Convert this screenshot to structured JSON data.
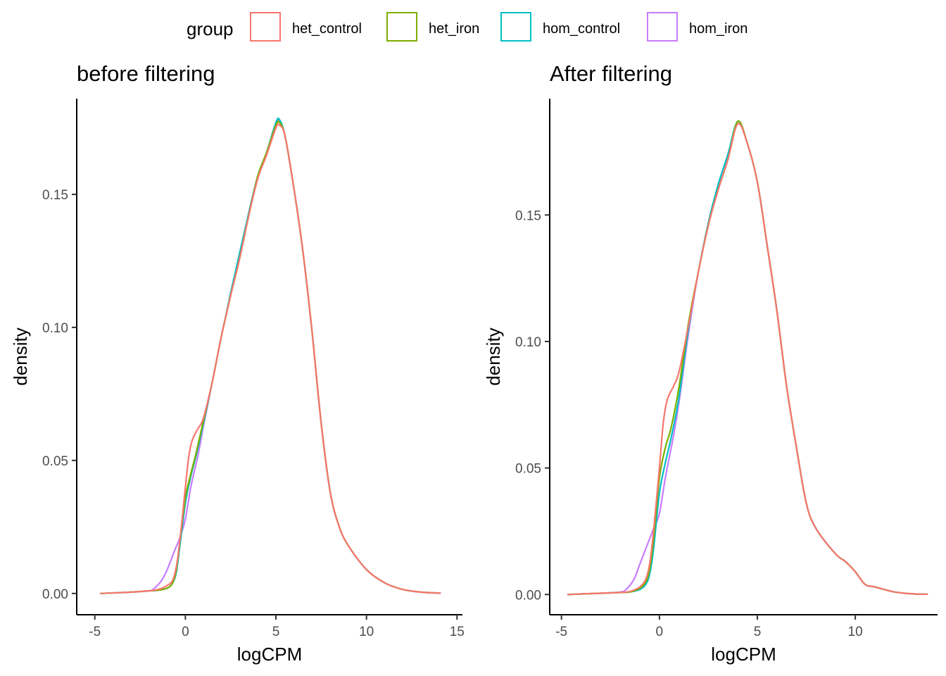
{
  "legend": {
    "title": "group",
    "entries": [
      {
        "name": "het_control",
        "color": "#F8766D"
      },
      {
        "name": "het_iron",
        "color": "#7CAE00"
      },
      {
        "name": "hom_control",
        "color": "#00BFC4"
      },
      {
        "name": "hom_iron",
        "color": "#C77CFF"
      }
    ],
    "position": "top"
  },
  "chart_data": [
    {
      "type": "line",
      "title": "before filtering",
      "xlabel": "logCPM",
      "ylabel": "density",
      "xlim": [
        -6.0,
        15.3
      ],
      "ylim": [
        -0.008,
        0.186
      ],
      "xticks": [
        -5,
        0,
        5,
        10,
        15
      ],
      "xtick_labels": [
        "-5",
        "0",
        "5",
        "10",
        "15"
      ],
      "yticks": [
        0,
        0.05,
        0.1,
        0.15
      ],
      "ytick_labels": [
        "0.00",
        "0.05",
        "0.10",
        "0.15"
      ],
      "grid": false,
      "series": [
        {
          "name": "het_control",
          "x": [
            -4.7,
            -3,
            -2,
            -1.5,
            -1,
            -0.7,
            -0.5,
            -0.3,
            0,
            0.2,
            0.4,
            0.7,
            1,
            1.5,
            2,
            2.5,
            3,
            3.5,
            4,
            4.5,
            5,
            5.2,
            5.5,
            6,
            6.5,
            7,
            7.5,
            8,
            8.5,
            9,
            10,
            11,
            12,
            13,
            14.1
          ],
          "y": [
            0,
            0.0005,
            0.001,
            0.0015,
            0.003,
            0.005,
            0.01,
            0.02,
            0.04,
            0.052,
            0.058,
            0.062,
            0.066,
            0.08,
            0.097,
            0.112,
            0.126,
            0.142,
            0.156,
            0.165,
            0.175,
            0.176,
            0.172,
            0.152,
            0.128,
            0.098,
            0.064,
            0.038,
            0.025,
            0.018,
            0.009,
            0.004,
            0.0015,
            0.0005,
            0.0001
          ]
        },
        {
          "name": "het_iron",
          "x": [
            -4.7,
            -3,
            -2,
            -1.5,
            -1,
            -0.7,
            -0.5,
            -0.3,
            0,
            0.3,
            0.6,
            1,
            1.5,
            2,
            2.5,
            3,
            3.5,
            4,
            4.5,
            5,
            5.2,
            5.5,
            6,
            6.5,
            7,
            7.5,
            8,
            8.5,
            9,
            10,
            11,
            12,
            13,
            14.1
          ],
          "y": [
            0,
            0.0005,
            0.001,
            0.0012,
            0.002,
            0.004,
            0.009,
            0.02,
            0.036,
            0.045,
            0.053,
            0.065,
            0.08,
            0.097,
            0.112,
            0.126,
            0.142,
            0.157,
            0.166,
            0.176,
            0.177,
            0.172,
            0.152,
            0.128,
            0.098,
            0.064,
            0.038,
            0.025,
            0.018,
            0.009,
            0.004,
            0.0015,
            0.0005,
            0.0001
          ]
        },
        {
          "name": "hom_control",
          "x": [
            -4.7,
            -3,
            -2,
            -1.5,
            -1,
            -0.7,
            -0.5,
            -0.3,
            0,
            0.3,
            0.6,
            1,
            1.5,
            2,
            2.5,
            3,
            3.5,
            4,
            4.5,
            5,
            5.2,
            5.5,
            6,
            6.5,
            7,
            7.5,
            8,
            8.5,
            9,
            10,
            11,
            12,
            13,
            14.1
          ],
          "y": [
            0,
            0.0005,
            0.001,
            0.0012,
            0.002,
            0.004,
            0.008,
            0.018,
            0.034,
            0.044,
            0.052,
            0.064,
            0.08,
            0.097,
            0.113,
            0.128,
            0.143,
            0.157,
            0.166,
            0.177,
            0.178,
            0.172,
            0.152,
            0.128,
            0.098,
            0.064,
            0.038,
            0.025,
            0.018,
            0.009,
            0.004,
            0.0015,
            0.0005,
            0.0001
          ]
        },
        {
          "name": "hom_iron",
          "x": [
            -4.7,
            -3,
            -2,
            -1.7,
            -1.3,
            -1,
            -0.6,
            -0.3,
            0,
            0.3,
            0.7,
            1,
            1.5,
            2,
            2.5,
            3,
            3.5,
            4,
            4.5,
            5,
            5.2,
            5.5,
            6,
            6.5,
            7,
            7.5,
            8,
            8.5,
            9,
            10,
            11,
            12,
            13,
            14.1
          ],
          "y": [
            0,
            0.0005,
            0.001,
            0.002,
            0.005,
            0.009,
            0.016,
            0.021,
            0.028,
            0.04,
            0.052,
            0.063,
            0.08,
            0.097,
            0.112,
            0.127,
            0.143,
            0.157,
            0.166,
            0.177,
            0.177,
            0.172,
            0.152,
            0.128,
            0.098,
            0.064,
            0.038,
            0.025,
            0.018,
            0.009,
            0.004,
            0.0015,
            0.0005,
            0.0001
          ]
        }
      ]
    },
    {
      "type": "line",
      "title": "After filtering",
      "xlabel": "logCPM",
      "ylabel": "density",
      "xlim": [
        -5.6,
        14.2
      ],
      "ylim": [
        -0.008,
        0.196
      ],
      "xticks": [
        -5,
        0,
        5,
        10
      ],
      "xtick_labels": [
        "-5",
        "0",
        "5",
        "10"
      ],
      "yticks": [
        0,
        0.05,
        0.1,
        0.15
      ],
      "ytick_labels": [
        "0.00",
        "0.05",
        "0.10",
        "0.15"
      ],
      "grid": false,
      "series": [
        {
          "name": "het_control",
          "x": [
            -4.7,
            -3,
            -2,
            -1.5,
            -1,
            -0.7,
            -0.5,
            -0.3,
            0,
            0.2,
            0.4,
            0.7,
            1,
            1.5,
            2,
            2.5,
            3,
            3.5,
            4,
            4.5,
            5,
            5.5,
            6,
            6.5,
            7,
            7.5,
            8,
            9,
            9.5,
            10,
            10.5,
            11,
            12,
            13,
            13.7
          ],
          "y": [
            0,
            0.0005,
            0.0008,
            0.0012,
            0.003,
            0.006,
            0.012,
            0.025,
            0.05,
            0.068,
            0.077,
            0.082,
            0.088,
            0.107,
            0.128,
            0.146,
            0.16,
            0.172,
            0.186,
            0.178,
            0.163,
            0.138,
            0.112,
            0.082,
            0.058,
            0.036,
            0.026,
            0.016,
            0.013,
            0.009,
            0.004,
            0.003,
            0.001,
            0.0002,
            0.0001
          ]
        },
        {
          "name": "het_iron",
          "x": [
            -4.7,
            -3,
            -2,
            -1.5,
            -1,
            -0.7,
            -0.5,
            -0.3,
            0,
            0.3,
            0.6,
            1,
            1.5,
            2,
            2.5,
            3,
            3.5,
            4,
            4.5,
            5,
            5.5,
            6,
            6.5,
            7,
            7.5,
            8,
            9,
            9.5,
            10,
            10.5,
            11,
            12,
            13,
            13.7
          ],
          "y": [
            0,
            0.0005,
            0.0008,
            0.001,
            0.0025,
            0.005,
            0.01,
            0.022,
            0.046,
            0.058,
            0.066,
            0.082,
            0.108,
            0.128,
            0.146,
            0.16,
            0.172,
            0.187,
            0.178,
            0.163,
            0.138,
            0.112,
            0.082,
            0.058,
            0.036,
            0.026,
            0.016,
            0.013,
            0.009,
            0.004,
            0.003,
            0.001,
            0.0002,
            0.0001
          ]
        },
        {
          "name": "hom_control",
          "x": [
            -4.7,
            -3,
            -2,
            -1.5,
            -1,
            -0.7,
            -0.5,
            -0.3,
            0,
            0.3,
            0.6,
            1,
            1.5,
            2,
            2.5,
            3,
            3.5,
            4,
            4.5,
            5,
            5.5,
            6,
            6.5,
            7,
            7.5,
            8,
            9,
            9.5,
            10,
            10.5,
            11,
            12,
            13,
            13.7
          ],
          "y": [
            0,
            0.0005,
            0.0008,
            0.001,
            0.002,
            0.004,
            0.008,
            0.018,
            0.04,
            0.052,
            0.062,
            0.078,
            0.106,
            0.128,
            0.147,
            0.162,
            0.174,
            0.187,
            0.178,
            0.163,
            0.138,
            0.112,
            0.082,
            0.058,
            0.036,
            0.026,
            0.016,
            0.013,
            0.009,
            0.004,
            0.003,
            0.001,
            0.0002,
            0.0001
          ]
        },
        {
          "name": "hom_iron",
          "x": [
            -4.7,
            -3,
            -2,
            -1.7,
            -1.3,
            -1,
            -0.6,
            -0.3,
            0,
            0.3,
            0.7,
            1,
            1.5,
            2,
            2.5,
            3,
            3.5,
            4,
            4.5,
            5,
            5.5,
            6,
            6.5,
            7,
            7.5,
            8,
            9,
            9.5,
            10,
            10.5,
            11,
            12,
            13,
            13.7
          ],
          "y": [
            0,
            0.0005,
            0.001,
            0.002,
            0.006,
            0.012,
            0.02,
            0.026,
            0.032,
            0.046,
            0.062,
            0.076,
            0.104,
            0.128,
            0.146,
            0.16,
            0.172,
            0.187,
            0.178,
            0.163,
            0.138,
            0.112,
            0.082,
            0.058,
            0.036,
            0.026,
            0.016,
            0.013,
            0.009,
            0.004,
            0.003,
            0.001,
            0.0002,
            0.0001
          ]
        }
      ]
    }
  ]
}
